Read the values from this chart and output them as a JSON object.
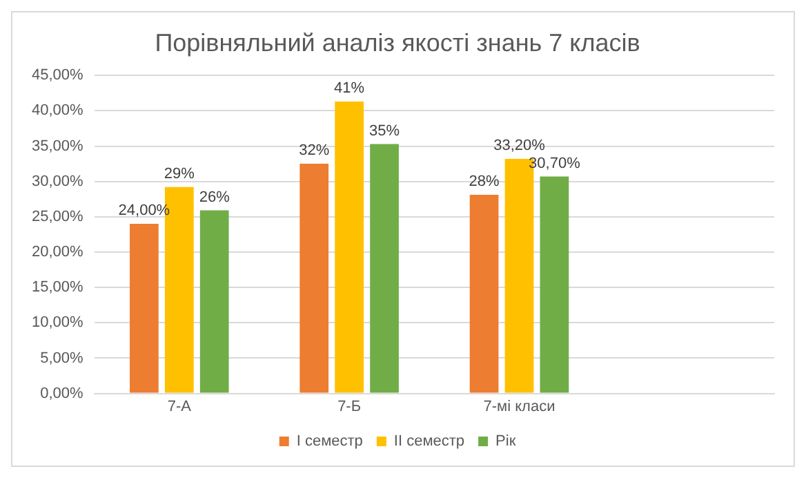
{
  "chart_data": {
    "type": "bar",
    "title": "Порівняльний аналіз якості знань 7 класів",
    "categories": [
      "7-А",
      "7-Б",
      "7-мі класи",
      null
    ],
    "series": [
      {
        "name": "I семестр",
        "color": "#ed7d31",
        "values": [
          24,
          32.5,
          28.1,
          null
        ],
        "value_labels": [
          "24,00%",
          "32%",
          "28%",
          null
        ]
      },
      {
        "name": "II семестр",
        "color": "#ffc000",
        "values": [
          29.2,
          41.3,
          33.2,
          null
        ],
        "value_labels": [
          "29%",
          "41%",
          "33,20%",
          null
        ]
      },
      {
        "name": "Рік",
        "color": "#70ad47",
        "values": [
          25.9,
          35.3,
          30.7,
          null
        ],
        "value_labels": [
          "26%",
          "35%",
          "30,70%",
          null
        ]
      }
    ],
    "ylim": [
      0,
      45
    ],
    "yticks": [
      {
        "value": 0,
        "label": "0,00%"
      },
      {
        "value": 5,
        "label": "5,00%"
      },
      {
        "value": 10,
        "label": "10,00%"
      },
      {
        "value": 15,
        "label": "15,00%"
      },
      {
        "value": 20,
        "label": "20,00%"
      },
      {
        "value": 25,
        "label": "25,00%"
      },
      {
        "value": 30,
        "label": "30,00%"
      },
      {
        "value": 35,
        "label": "35,00%"
      },
      {
        "value": 40,
        "label": "40,00%"
      },
      {
        "value": 45,
        "label": "45,00%"
      }
    ],
    "grid": "y",
    "legend": "bottom"
  }
}
